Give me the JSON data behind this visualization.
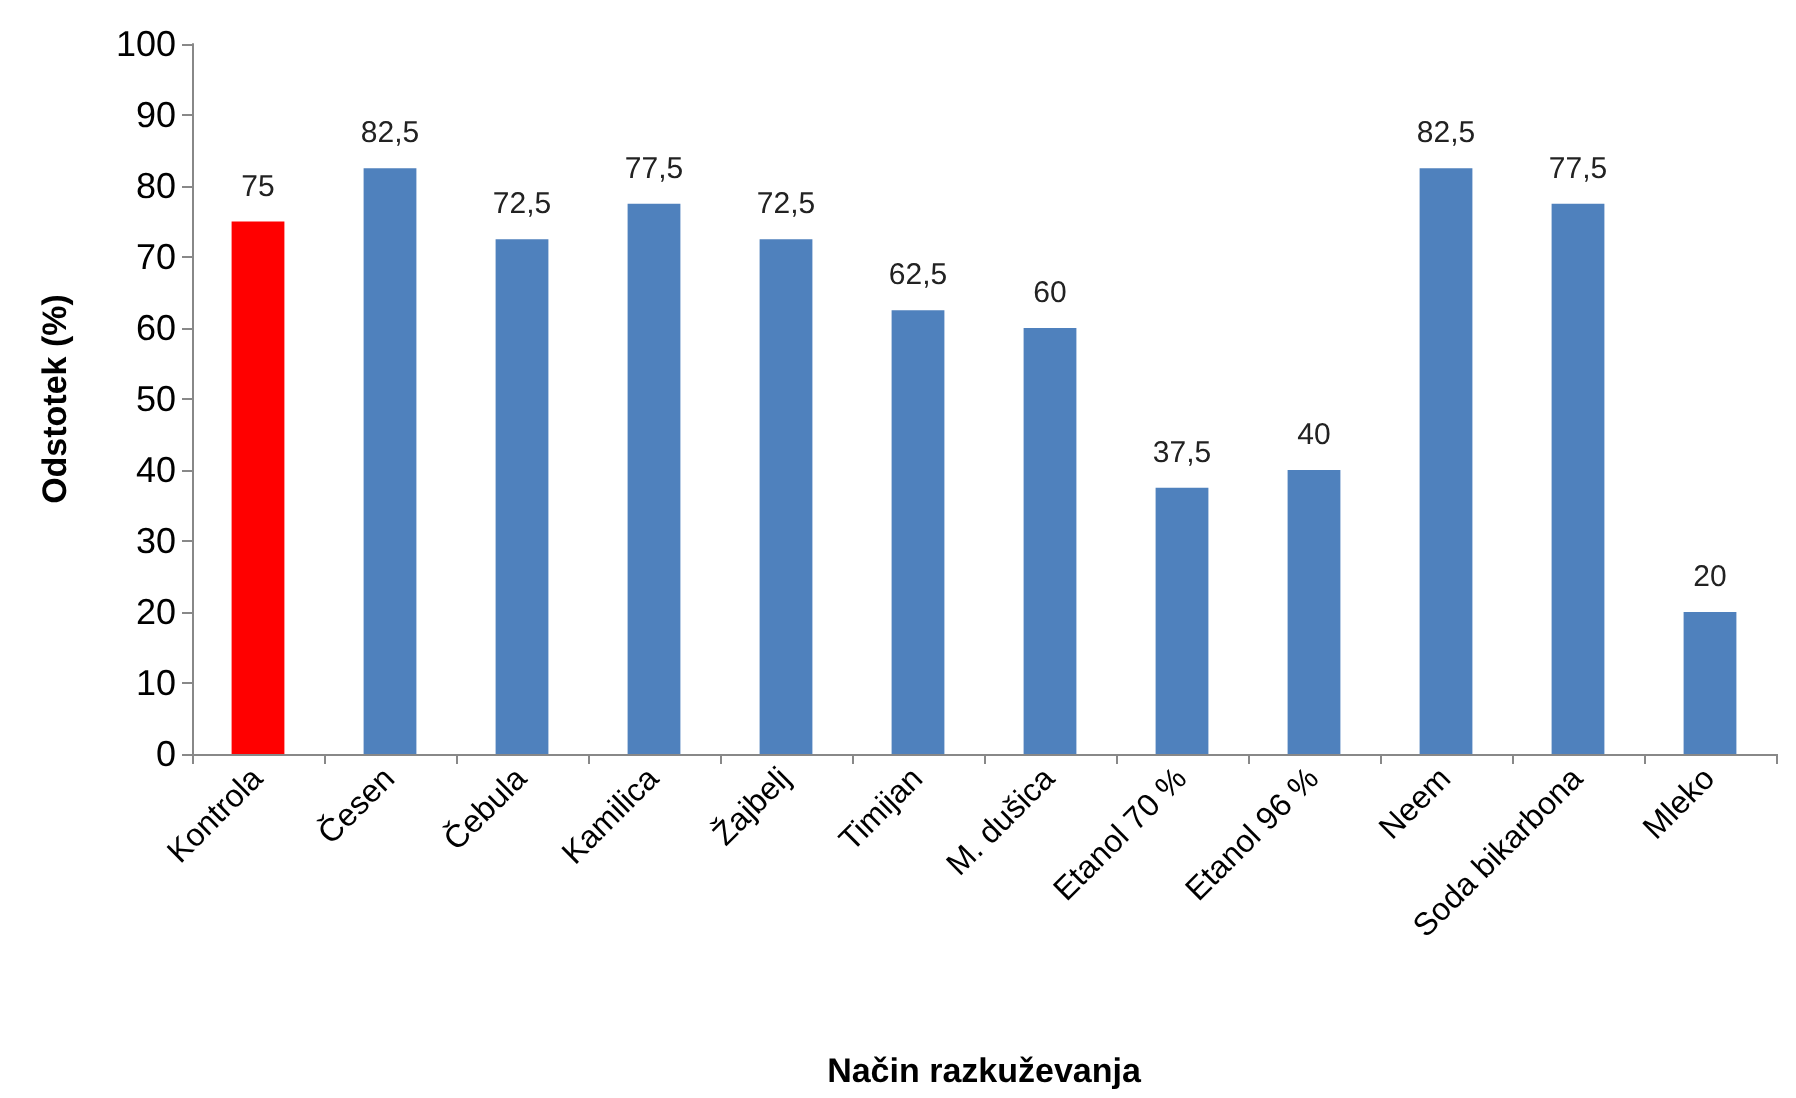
{
  "chart_data": {
    "type": "bar",
    "xlabel": "Način razkuževanja",
    "ylabel": "Odstotek (%)",
    "categories": [
      "Kontrola",
      "Česen",
      "Čebula",
      "Kamilica",
      "Žajbelj",
      "Timijan",
      "M. dušica",
      "Etanol 70 %",
      "Etanol 96 %",
      "Neem",
      "Soda bikarbona",
      "Mleko"
    ],
    "values": [
      75,
      82.5,
      72.5,
      77.5,
      72.5,
      62.5,
      60,
      37.5,
      40,
      82.5,
      77.5,
      20
    ],
    "colors": [
      "#ff0000",
      "#4f81bd",
      "#4f81bd",
      "#4f81bd",
      "#4f81bd",
      "#4f81bd",
      "#4f81bd",
      "#4f81bd",
      "#4f81bd",
      "#4f81bd",
      "#4f81bd",
      "#4f81bd"
    ],
    "value_labels": [
      "75",
      "82,5",
      "72,5",
      "77,5",
      "72,5",
      "62,5",
      "60",
      "37,5",
      "40",
      "82,5",
      "77,5",
      "20"
    ],
    "ylim": [
      0,
      100
    ],
    "yticks": [
      0,
      10,
      20,
      30,
      40,
      50,
      60,
      70,
      80,
      90,
      100
    ]
  }
}
